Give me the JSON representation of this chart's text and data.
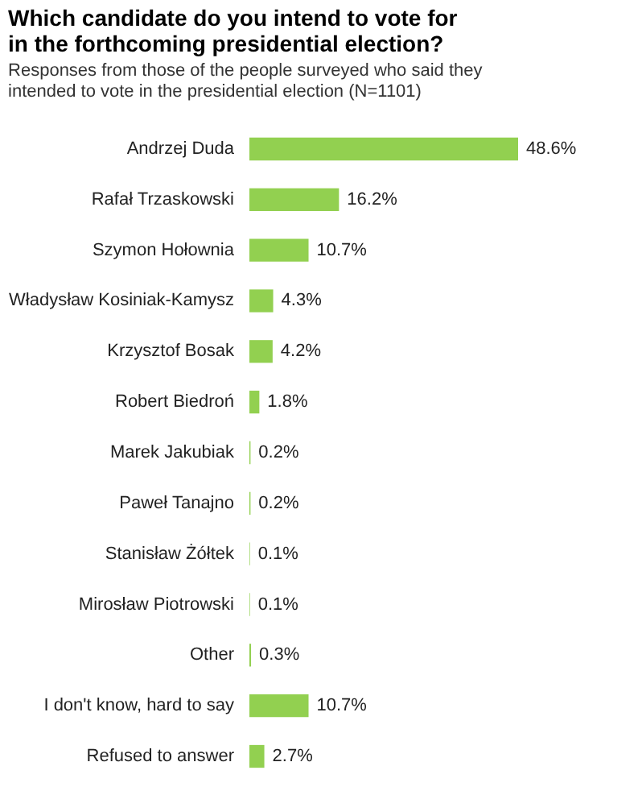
{
  "chart_data": {
    "type": "bar",
    "orientation": "horizontal",
    "title": [
      "Which candidate do you intend to vote for",
      "in the forthcoming presidential election?"
    ],
    "subtitle": [
      "Responses from those of the people surveyed who said they",
      "intended to vote in the presidential election (N=1101)"
    ],
    "categories": [
      "Andrzej Duda",
      "Rafał Trzaskowski",
      "Szymon Hołownia",
      "Władysław Kosiniak-Kamysz",
      "Krzysztof Bosak",
      "Robert Biedroń",
      "Marek Jakubiak",
      "Paweł Tanajno",
      "Stanisław Żółtek",
      "Mirosław Piotrowski",
      "Other",
      "I don't know, hard to say",
      "Refused to answer"
    ],
    "values": [
      48.6,
      16.2,
      10.7,
      4.3,
      4.2,
      1.8,
      0.2,
      0.2,
      0.1,
      0.1,
      0.3,
      10.7,
      2.7
    ],
    "value_labels": [
      "48.6%",
      "16.2%",
      "10.7%",
      "4.3%",
      "4.2%",
      "1.8%",
      "0.2%",
      "0.2%",
      "0.1%",
      "0.1%",
      "0.3%",
      "10.7%",
      "2.7%"
    ],
    "color": "#92d050",
    "tick_labels": "y"
  }
}
